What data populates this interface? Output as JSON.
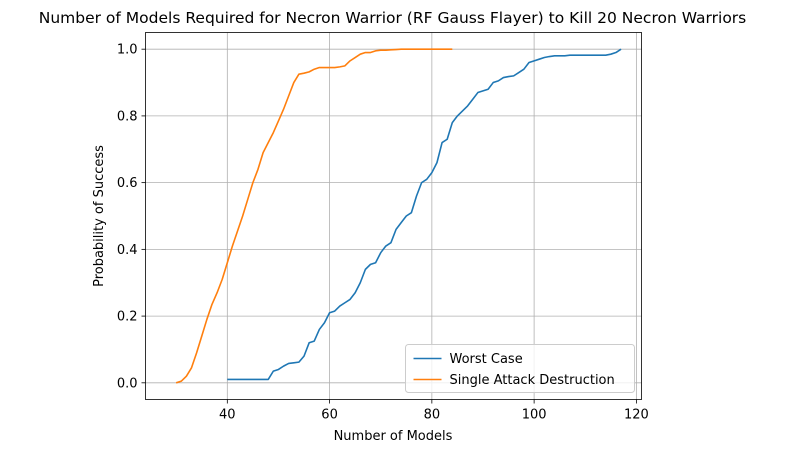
{
  "chart_data": {
    "type": "line",
    "title": "Number of Models Required for Necron Warrior (RF Gauss Flayer) to Kill 20 Necron Warriors",
    "xlabel": "Number of Models",
    "ylabel": "Probability of Success",
    "xlim": [
      24,
      121
    ],
    "ylim": [
      -0.05,
      1.05
    ],
    "xticks": [
      40,
      60,
      80,
      100,
      120
    ],
    "yticks": [
      0.0,
      0.2,
      0.4,
      0.6,
      0.8,
      1.0
    ],
    "xtick_labels": [
      "40",
      "60",
      "80",
      "100",
      "120"
    ],
    "ytick_labels": [
      "0.0",
      "0.2",
      "0.4",
      "0.6",
      "0.8",
      "1.0"
    ],
    "grid": true,
    "legend_position": "lower-right",
    "series": [
      {
        "name": "Worst Case",
        "color": "#1f77b4",
        "x": [
          40,
          41,
          42,
          43,
          44,
          45,
          46,
          47,
          48,
          49,
          50,
          51,
          52,
          53,
          54,
          55,
          56,
          57,
          58,
          59,
          60,
          61,
          62,
          63,
          64,
          65,
          66,
          67,
          68,
          69,
          70,
          71,
          72,
          73,
          74,
          75,
          76,
          77,
          78,
          79,
          80,
          81,
          82,
          83,
          84,
          85,
          86,
          87,
          88,
          89,
          90,
          91,
          92,
          93,
          94,
          95,
          96,
          97,
          98,
          99,
          100,
          101,
          102,
          103,
          104,
          105,
          106,
          107,
          108,
          109,
          110,
          111,
          112,
          113,
          114,
          115,
          116,
          117
        ],
        "y": [
          0.01,
          0.01,
          0.01,
          0.01,
          0.01,
          0.01,
          0.01,
          0.01,
          0.01,
          0.035,
          0.04,
          0.05,
          0.058,
          0.06,
          0.062,
          0.08,
          0.12,
          0.125,
          0.16,
          0.18,
          0.21,
          0.215,
          0.23,
          0.24,
          0.25,
          0.27,
          0.3,
          0.34,
          0.355,
          0.36,
          0.39,
          0.41,
          0.42,
          0.46,
          0.48,
          0.5,
          0.51,
          0.56,
          0.6,
          0.61,
          0.63,
          0.66,
          0.72,
          0.73,
          0.78,
          0.8,
          0.815,
          0.83,
          0.85,
          0.87,
          0.875,
          0.88,
          0.9,
          0.905,
          0.915,
          0.918,
          0.92,
          0.93,
          0.94,
          0.96,
          0.965,
          0.97,
          0.975,
          0.978,
          0.98,
          0.98,
          0.98,
          0.982,
          0.982,
          0.982,
          0.982,
          0.982,
          0.982,
          0.982,
          0.982,
          0.985,
          0.99,
          1.0
        ]
      },
      {
        "name": "Single Attack Destruction",
        "color": "#ff7f0e",
        "x": [
          30,
          31,
          32,
          33,
          34,
          35,
          36,
          37,
          38,
          39,
          40,
          41,
          42,
          43,
          44,
          45,
          46,
          47,
          48,
          49,
          50,
          51,
          52,
          53,
          54,
          55,
          56,
          57,
          58,
          59,
          60,
          61,
          62,
          63,
          64,
          65,
          66,
          67,
          68,
          69,
          70,
          71,
          72,
          73,
          74,
          75,
          76,
          77,
          78,
          79,
          80,
          81,
          82,
          83,
          84
        ],
        "y": [
          0.0,
          0.005,
          0.02,
          0.045,
          0.09,
          0.14,
          0.19,
          0.235,
          0.27,
          0.31,
          0.36,
          0.41,
          0.455,
          0.5,
          0.55,
          0.6,
          0.64,
          0.69,
          0.72,
          0.75,
          0.785,
          0.82,
          0.86,
          0.9,
          0.925,
          0.928,
          0.932,
          0.94,
          0.945,
          0.945,
          0.945,
          0.945,
          0.947,
          0.95,
          0.965,
          0.975,
          0.985,
          0.99,
          0.99,
          0.995,
          0.997,
          0.997,
          0.998,
          0.999,
          1.0,
          1.0,
          1.0,
          1.0,
          1.0,
          1.0,
          1.0,
          1.0,
          1.0,
          1.0,
          1.0
        ]
      }
    ]
  }
}
